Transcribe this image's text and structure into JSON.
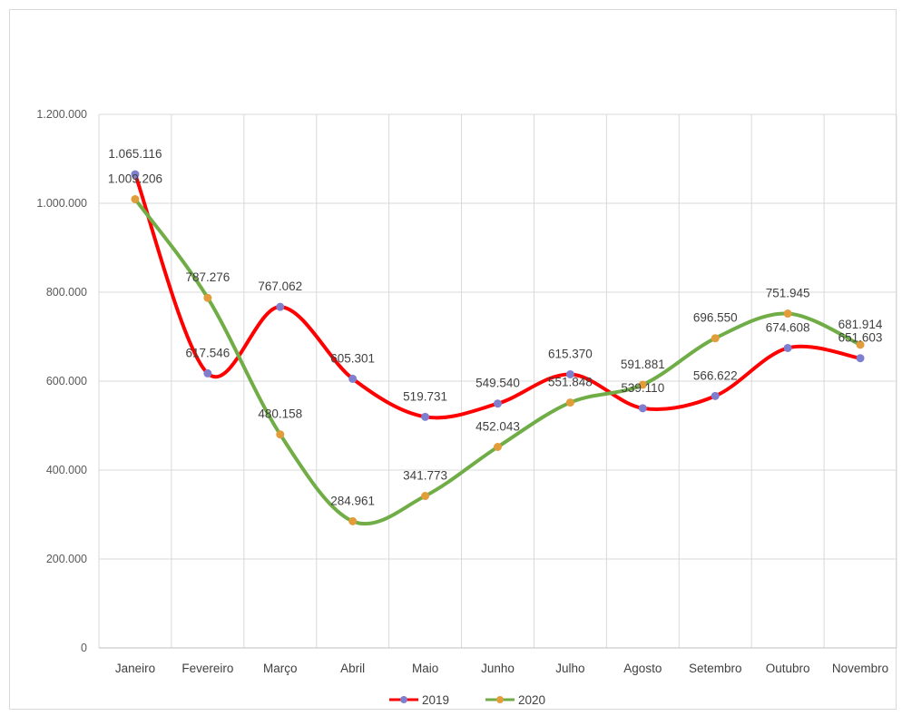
{
  "chart_data": {
    "type": "line",
    "title": "",
    "xlabel": "",
    "ylabel": "",
    "categories": [
      "Janeiro",
      "Fevereiro",
      "Março",
      "Abril",
      "Maio",
      "Junho",
      "Julho",
      "Agosto",
      "Setembro",
      "Outubro",
      "Novembro"
    ],
    "ylim": [
      0,
      1200000
    ],
    "yticks": [
      0,
      200000,
      400000,
      600000,
      800000,
      1000000,
      1200000
    ],
    "ytick_labels": [
      "0",
      "200.000",
      "400.000",
      "600.000",
      "800.000",
      "1.000.000",
      "1.200.000"
    ],
    "grid": true,
    "smooth": true,
    "legend_position": "bottom",
    "series": [
      {
        "name": "2019",
        "color": "#ff0000",
        "marker_color": "#7f7fd0",
        "values": [
          1065116,
          617546,
          767062,
          605301,
          519731,
          549540,
          615370,
          539110,
          566622,
          674608,
          651603
        ],
        "labels": [
          "1.065.116",
          "617.546",
          "767.062",
          "605.301",
          "519.731",
          "549.540",
          "615.370",
          "539.110",
          "566.622",
          "674.608",
          "651.603"
        ]
      },
      {
        "name": "2020",
        "color": "#70ad47",
        "marker_color": "#e39c3a",
        "values": [
          1009206,
          787276,
          480158,
          284961,
          341773,
          452043,
          551848,
          591881,
          696550,
          751945,
          681914
        ],
        "labels": [
          "1.009.206",
          "787.276",
          "480.158",
          "284.961",
          "341.773",
          "452.043",
          "551.848",
          "591.881",
          "696.550",
          "751.945",
          "681.914"
        ]
      }
    ]
  }
}
